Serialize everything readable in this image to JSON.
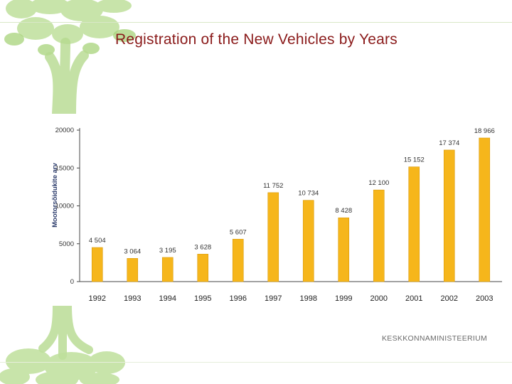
{
  "slide": {
    "title": "Registration of the New Vehicles by Years",
    "footer_logo_text": "KESKKONNAMINISTEERIUM"
  },
  "colors": {
    "bar": "#f6b61b",
    "bar_edge": "#d99a0a",
    "title": "#8a1a1a",
    "tree_green": "#a7d37a"
  },
  "chart_data": {
    "type": "bar",
    "title": "",
    "xlabel": "",
    "ylabel": "Mootorsõidukite arv",
    "categories": [
      "1992",
      "1993",
      "1994",
      "1995",
      "1996",
      "1997",
      "1998",
      "1999",
      "2000",
      "2001",
      "2002",
      "2003"
    ],
    "values": [
      4504,
      3064,
      3195,
      3628,
      5607,
      11752,
      10734,
      8428,
      12100,
      15152,
      17374,
      18966
    ],
    "data_labels": [
      "4 504",
      "3 064",
      "3 195",
      "3 628",
      "5 607",
      "11 752",
      "10 734",
      "8 428",
      "12 100",
      "15 152",
      "17 374",
      "18 966"
    ],
    "yticks": [
      0,
      5000,
      10000,
      15000,
      20000
    ],
    "ytick_labels": [
      "0",
      "5000",
      "10000",
      "15000",
      "20000"
    ],
    "ylim": [
      0,
      20000
    ],
    "grid": false,
    "legend": "none"
  }
}
